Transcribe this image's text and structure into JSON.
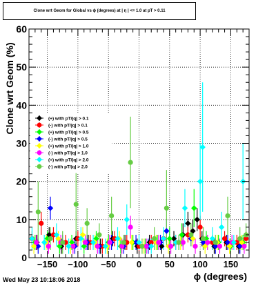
{
  "chart_data": {
    "type": "scatter",
    "title": "Clone wrt Geom for Global vs ϕ (degrees) at | η | <= 1.0 at pT > 0.11",
    "xlabel": "ϕ (degrees)",
    "ylabel": "Clone wrt  Geom (%)",
    "xlim": [
      -180,
      180
    ],
    "ylim": [
      0,
      60
    ],
    "xticks": [
      -150,
      -100,
      -50,
      0,
      50,
      100,
      150
    ],
    "xtick_labels": [
      "−150",
      "−100",
      "−50",
      "0",
      "50",
      "100",
      "150"
    ],
    "yticks": [
      0,
      10,
      20,
      30,
      40,
      50,
      60
    ],
    "ytick_labels": [
      "0",
      "10",
      "20",
      "30",
      "40",
      "50",
      "60"
    ],
    "grid": true,
    "legend_position": "left-center",
    "series": [
      {
        "name": "(+) with pT/|q| > 0.1",
        "color": "#000000",
        "marker": "diamond",
        "x": [
          -167,
          -147,
          -127,
          -103,
          -83,
          -63,
          -43,
          -23,
          -3,
          17,
          37,
          57,
          72,
          80,
          88,
          95,
          103,
          123,
          143,
          163
        ],
        "y": [
          4,
          6,
          3,
          5,
          4,
          3,
          5,
          4,
          3,
          4,
          3,
          5,
          6,
          9,
          7,
          10,
          5,
          3,
          4,
          3
        ],
        "err": [
          2,
          2,
          2,
          2,
          2,
          2,
          2,
          2,
          2,
          2,
          2,
          2,
          3,
          3,
          3,
          3,
          2,
          2,
          2,
          2
        ]
      },
      {
        "name": "(-) with pT/|q| > 0.1",
        "color": "#ff0000",
        "marker": "circle",
        "x": [
          -175,
          -160,
          -140,
          -120,
          -100,
          -80,
          -60,
          -40,
          -20,
          0,
          20,
          40,
          60,
          80,
          100,
          120,
          140,
          160,
          175
        ],
        "y": [
          5,
          9,
          6,
          4,
          5,
          4,
          3,
          5,
          4,
          3,
          4,
          5,
          4,
          6,
          8,
          4,
          5,
          4,
          5
        ],
        "err": [
          2,
          3,
          2,
          2,
          2,
          2,
          2,
          2,
          2,
          2,
          2,
          2,
          2,
          2,
          3,
          2,
          2,
          2,
          2
        ]
      },
      {
        "name": "(+) with pT/|q| > 0.5",
        "color": "#00ff00",
        "marker": "diamond",
        "x": [
          -170,
          -150,
          -130,
          -110,
          -90,
          -70,
          -50,
          -30,
          -10,
          10,
          30,
          50,
          70,
          90,
          110,
          130,
          150,
          170
        ],
        "y": [
          4,
          5,
          3,
          4,
          3,
          5,
          4,
          3,
          4,
          3,
          4,
          5,
          6,
          13,
          5,
          4,
          3,
          4
        ],
        "err": [
          2,
          2,
          2,
          2,
          2,
          2,
          2,
          2,
          2,
          2,
          2,
          3,
          3,
          5,
          2,
          2,
          2,
          2
        ]
      },
      {
        "name": "(-) with pT/|q| > 0.5",
        "color": "#0000ff",
        "marker": "diamond",
        "x": [
          -165,
          -145,
          -125,
          -105,
          -85,
          -65,
          -45,
          -25,
          -5,
          15,
          35,
          45,
          65,
          85,
          105,
          125,
          145,
          165
        ],
        "y": [
          3,
          13,
          4,
          3,
          4,
          3,
          4,
          3,
          4,
          3,
          4,
          7,
          4,
          5,
          4,
          3,
          4,
          3
        ],
        "err": [
          2,
          3,
          2,
          2,
          2,
          2,
          2,
          2,
          2,
          2,
          2,
          3,
          2,
          2,
          2,
          2,
          2,
          2
        ]
      },
      {
        "name": "(+) with pT/|q| > 1.0",
        "color": "#ffff00",
        "marker": "diamond",
        "x": [
          -172,
          -152,
          -132,
          -112,
          -92,
          -72,
          -52,
          -32,
          -12,
          8,
          28,
          48,
          68,
          88,
          108,
          128,
          148,
          168
        ],
        "y": [
          3,
          4,
          5,
          3,
          6,
          4,
          3,
          5,
          4,
          3,
          4,
          3,
          4,
          5,
          3,
          4,
          3,
          4
        ],
        "err": [
          2,
          2,
          2,
          2,
          2,
          2,
          2,
          2,
          2,
          2,
          2,
          2,
          2,
          2,
          2,
          2,
          2,
          2
        ]
      },
      {
        "name": "(-) with pT/|q| > 1.0",
        "color": "#ff00ff",
        "marker": "circle",
        "x": [
          -168,
          -148,
          -128,
          -108,
          -88,
          -68,
          -48,
          -28,
          -14,
          12,
          32,
          52,
          72,
          92,
          112,
          132,
          152,
          172
        ],
        "y": [
          4,
          3,
          4,
          3,
          4,
          3,
          4,
          3,
          8,
          3,
          4,
          3,
          4,
          3,
          4,
          3,
          4,
          3
        ],
        "err": [
          2,
          2,
          2,
          2,
          2,
          2,
          2,
          2,
          3,
          2,
          2,
          2,
          2,
          2,
          2,
          2,
          2,
          2
        ]
      },
      {
        "name": "(+) with pT/|q| > 2.0",
        "color": "#00ffff",
        "marker": "diamond",
        "x": [
          -175,
          -155,
          -135,
          -115,
          -95,
          -75,
          -55,
          -35,
          -20,
          0,
          20,
          40,
          60,
          75,
          100,
          104,
          120,
          135,
          155,
          170
        ],
        "y": [
          5,
          4,
          6,
          3,
          5,
          4,
          3,
          5,
          10,
          4,
          3,
          5,
          4,
          13,
          20,
          29,
          5,
          8,
          4,
          20
        ],
        "err": [
          3,
          2,
          3,
          2,
          3,
          2,
          2,
          3,
          4,
          2,
          2,
          3,
          2,
          5,
          10,
          17,
          3,
          4,
          2,
          10
        ]
      },
      {
        "name": "(-) with pT/|q| > 2.0",
        "color": "#66cc44",
        "marker": "circle",
        "x": [
          -165,
          -145,
          -125,
          -103,
          -85,
          -65,
          -45,
          -25,
          -14,
          5,
          25,
          45,
          65,
          85,
          105,
          125,
          145,
          165,
          175
        ],
        "y": [
          12,
          5,
          4,
          14,
          9,
          6,
          11,
          4,
          25,
          3,
          5,
          13,
          4,
          6,
          5,
          4,
          11,
          5,
          6
        ],
        "err": [
          8,
          3,
          3,
          10,
          4,
          3,
          5,
          2,
          12,
          2,
          3,
          10,
          2,
          3,
          3,
          2,
          5,
          3,
          3
        ]
      }
    ]
  },
  "footer": {
    "timestamp": "Wed May 23 10:18:06 2018"
  }
}
